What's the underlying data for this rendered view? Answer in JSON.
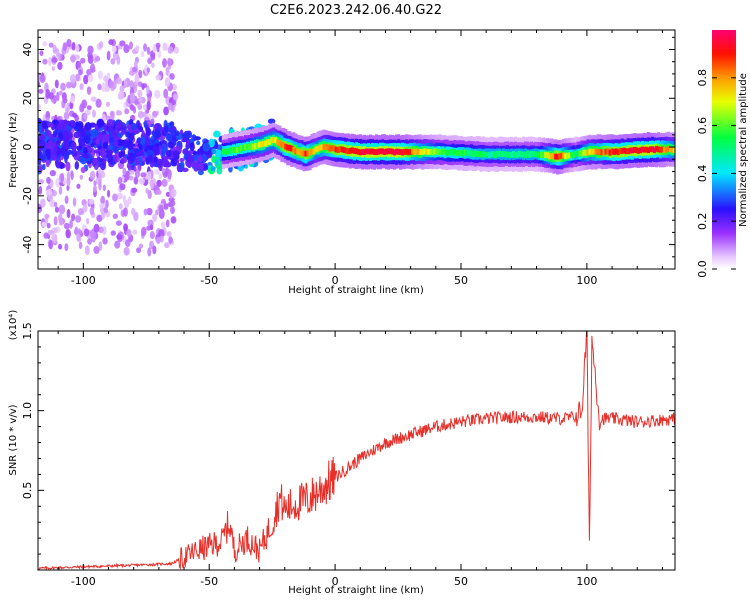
{
  "figure": {
    "title": "C2E6.2023.242.06.40.G22"
  },
  "chart_data": [
    {
      "type": "heatmap",
      "xlabel": "Height of straight line (km)",
      "ylabel": "Frequency (Hz)",
      "xlim": [
        -118,
        135
      ],
      "ylim": [
        -50,
        48
      ],
      "x_ticks": [
        "-100",
        "-50",
        "0",
        "50",
        "100"
      ],
      "x_tick_values": [
        -100,
        -50,
        0,
        50,
        100
      ],
      "y_ticks": [
        "40",
        "20",
        "0",
        "-20",
        "-40"
      ],
      "y_tick_values": [
        40,
        20,
        0,
        -20,
        -40
      ],
      "colorbar": {
        "label": "Normalized spectral amplitude",
        "range": [
          0,
          1
        ],
        "ticks": [
          "0.0",
          "0.2",
          "0.4",
          "0.6",
          "0.8"
        ],
        "tick_values": [
          0.0,
          0.2,
          0.4,
          0.6,
          0.8
        ],
        "colormap": "rainbow (white → violet → blue → cyan → green → yellow → orange → red → magenta)"
      },
      "ridge": {
        "description": "dominant frequency line vs height",
        "x": [
          -118,
          -100,
          -80,
          -65,
          -55,
          -45,
          -40,
          -35,
          -30,
          -25,
          -20,
          -15,
          -12,
          -8,
          -5,
          0,
          10,
          25,
          40,
          60,
          80,
          88,
          95,
          100,
          110,
          125,
          135
        ],
        "y": [
          3,
          2,
          2,
          0,
          -3,
          -2,
          -1,
          0,
          1,
          3,
          0,
          -2,
          -3,
          -1,
          0,
          -1,
          -2,
          -2,
          -2,
          -3,
          -3,
          -4,
          -3,
          -2,
          -2,
          -1,
          -1
        ],
        "amplitude": [
          0.3,
          0.3,
          0.25,
          0.35,
          0.4,
          0.55,
          0.6,
          0.6,
          0.7,
          0.7,
          0.9,
          0.8,
          0.9,
          0.7,
          0.8,
          0.9,
          0.95,
          0.95,
          0.6,
          0.5,
          0.5,
          0.92,
          0.5,
          0.75,
          0.9,
          0.95,
          0.7
        ]
      },
      "noise_region": {
        "description": "scattered low-amplitude energy across frequency",
        "x_range": [
          -118,
          -63
        ]
      }
    },
    {
      "type": "line",
      "xlabel": "Height of straight line (km)",
      "ylabel": "SNR (10 * v/v)",
      "y_multiplier_label": "(x10⁴)",
      "xlim": [
        -118,
        135
      ],
      "ylim": [
        0,
        1.5
      ],
      "x_ticks": [
        "-100",
        "-50",
        "0",
        "50",
        "100"
      ],
      "x_tick_values": [
        -100,
        -50,
        0,
        50,
        100
      ],
      "y_ticks": [
        "1.5",
        "1.0",
        "0.5"
      ],
      "y_tick_values": [
        1.5,
        1.0,
        0.5
      ],
      "color": "#e8302a",
      "series": [
        {
          "x": [
            -118,
            -100,
            -80,
            -65,
            -60,
            -55,
            -50,
            -45,
            -42,
            -40,
            -35,
            -30,
            -25,
            -22,
            -20,
            -15,
            -10,
            -5,
            0,
            10,
            20,
            30,
            40,
            50,
            60,
            70,
            80,
            90,
            95,
            98,
            100,
            101,
            102,
            105,
            110,
            120,
            135
          ],
          "values": [
            0.01,
            0.02,
            0.03,
            0.04,
            0.08,
            0.12,
            0.15,
            0.18,
            0.3,
            0.12,
            0.2,
            0.12,
            0.3,
            0.45,
            0.38,
            0.42,
            0.45,
            0.52,
            0.58,
            0.7,
            0.8,
            0.85,
            0.9,
            0.93,
            0.95,
            0.96,
            0.96,
            0.95,
            0.96,
            1.0,
            1.5,
            0.12,
            1.45,
            0.95,
            0.95,
            0.93,
            0.95
          ]
        }
      ]
    }
  ]
}
